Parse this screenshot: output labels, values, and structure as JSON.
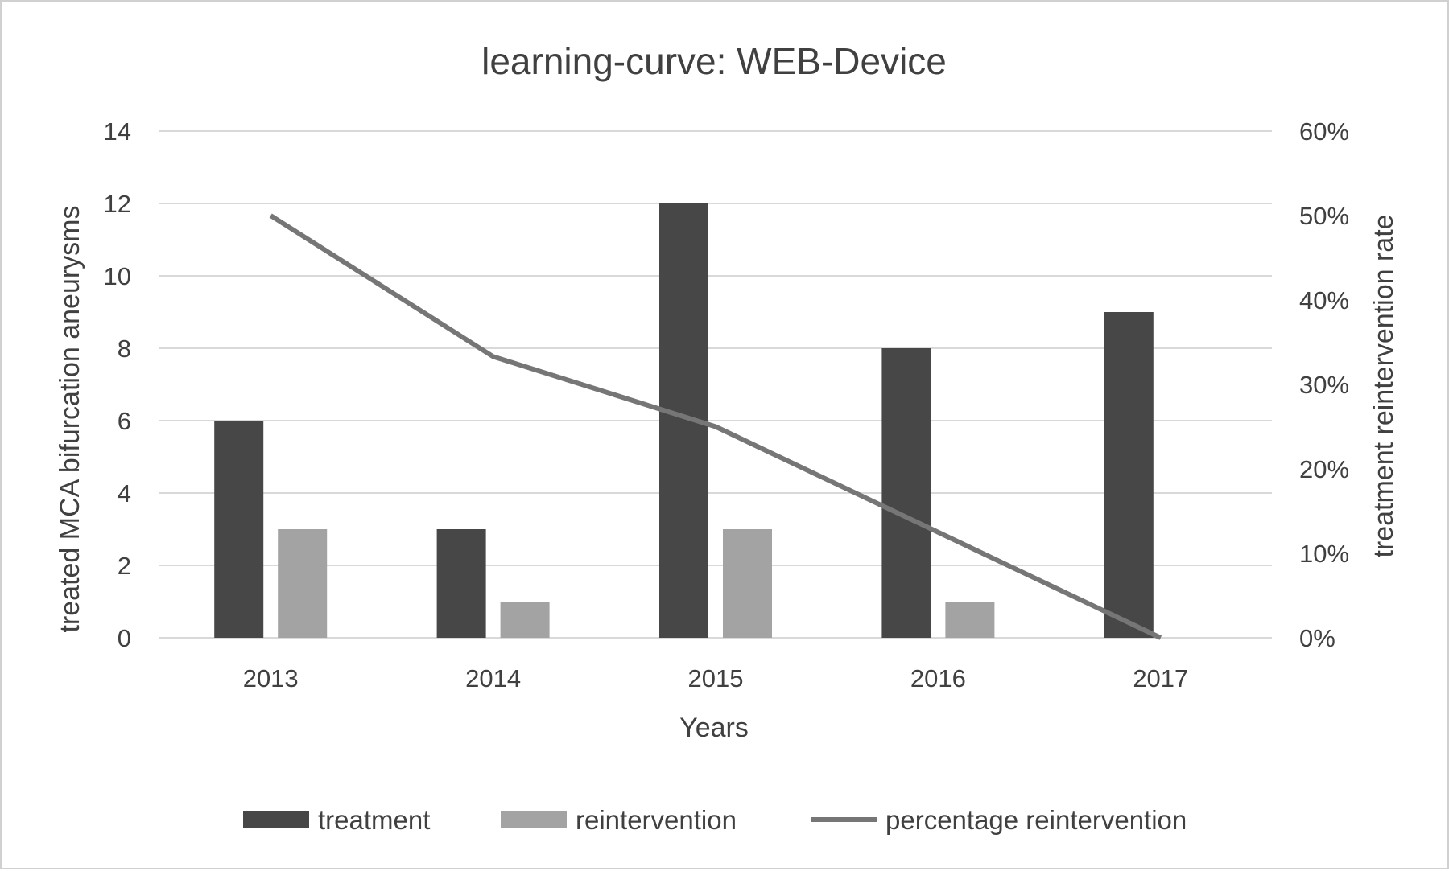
{
  "chart_data": {
    "type": "bar",
    "title": "learning-curve: WEB-Device",
    "xlabel": "Years",
    "ylabel": "treated MCA bifurcation aneurysms",
    "y2label": "treatment reintervention rate",
    "categories": [
      "2013",
      "2014",
      "2015",
      "2016",
      "2017"
    ],
    "ylim": [
      0,
      14
    ],
    "yticks": [
      "0",
      "2",
      "4",
      "6",
      "8",
      "10",
      "12",
      "14"
    ],
    "y2lim": [
      0,
      0.6
    ],
    "y2ticks": [
      "0%",
      "10%",
      "20%",
      "30%",
      "40%",
      "50%",
      "60%"
    ],
    "grid": true,
    "legend_position": "bottom",
    "series": [
      {
        "name": "treatment",
        "type": "bar",
        "axis": "left",
        "color": "#474747",
        "values": [
          6,
          3,
          12,
          8,
          9
        ]
      },
      {
        "name": "reintervention",
        "type": "bar",
        "axis": "left",
        "color": "#a3a3a3",
        "values": [
          3,
          1,
          3,
          1,
          0
        ]
      },
      {
        "name": "percentage reintervention",
        "type": "line",
        "axis": "right",
        "color": "#767676",
        "values": [
          0.5,
          0.333,
          0.25,
          0.125,
          0
        ]
      }
    ]
  }
}
